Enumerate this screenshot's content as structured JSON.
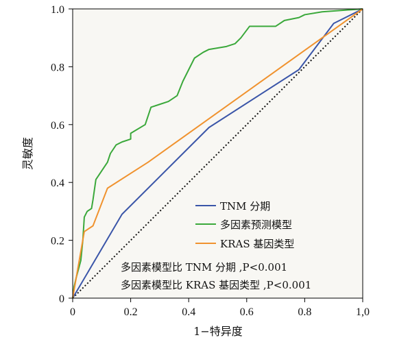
{
  "chart_data": {
    "type": "line",
    "xlabel": "1−特异度",
    "ylabel": "灵敏度",
    "xlim": [
      0,
      1
    ],
    "ylim": [
      0,
      1
    ],
    "x_ticks": [
      "0",
      "0.2",
      "0.4",
      "0.6",
      "0.8",
      "1,0"
    ],
    "y_ticks": [
      "0",
      "0.2",
      "0.4",
      "0.6",
      "0.8",
      "1.0"
    ],
    "grid": false,
    "legend_position": "bottom-right",
    "series": [
      {
        "name": "TNM 分期",
        "color": "#3a55a8",
        "points": [
          [
            0,
            0
          ],
          [
            0.17,
            0.29
          ],
          [
            0.47,
            0.59
          ],
          [
            0.78,
            0.79
          ],
          [
            0.9,
            0.95
          ],
          [
            1,
            1
          ]
        ]
      },
      {
        "name": "多因素预测模型",
        "color": "#3aa83a",
        "points": [
          [
            0,
            0
          ],
          [
            0.005,
            0.04
          ],
          [
            0.012,
            0.07
          ],
          [
            0.02,
            0.1
          ],
          [
            0.028,
            0.13
          ],
          [
            0.035,
            0.2
          ],
          [
            0.04,
            0.28
          ],
          [
            0.05,
            0.3
          ],
          [
            0.065,
            0.31
          ],
          [
            0.07,
            0.34
          ],
          [
            0.08,
            0.41
          ],
          [
            0.1,
            0.44
          ],
          [
            0.12,
            0.47
          ],
          [
            0.13,
            0.5
          ],
          [
            0.15,
            0.53
          ],
          [
            0.17,
            0.54
          ],
          [
            0.2,
            0.55
          ],
          [
            0.2,
            0.57
          ],
          [
            0.25,
            0.6
          ],
          [
            0.27,
            0.66
          ],
          [
            0.3,
            0.67
          ],
          [
            0.33,
            0.68
          ],
          [
            0.36,
            0.7
          ],
          [
            0.38,
            0.75
          ],
          [
            0.4,
            0.79
          ],
          [
            0.42,
            0.83
          ],
          [
            0.45,
            0.85
          ],
          [
            0.47,
            0.86
          ],
          [
            0.5,
            0.865
          ],
          [
            0.53,
            0.87
          ],
          [
            0.56,
            0.88
          ],
          [
            0.58,
            0.9
          ],
          [
            0.61,
            0.94
          ],
          [
            0.7,
            0.94
          ],
          [
            0.73,
            0.96
          ],
          [
            0.78,
            0.97
          ],
          [
            0.8,
            0.98
          ],
          [
            0.86,
            0.99
          ],
          [
            1,
            1
          ]
        ]
      },
      {
        "name": "KRAS 基因类型",
        "color": "#f0922e",
        "points": [
          [
            0,
            0
          ],
          [
            0.04,
            0.23
          ],
          [
            0.07,
            0.25
          ],
          [
            0.12,
            0.38
          ],
          [
            0.26,
            0.47
          ],
          [
            1,
            1
          ]
        ]
      }
    ],
    "reference_line": {
      "points": [
        [
          0,
          0
        ],
        [
          1,
          1
        ]
      ],
      "color": "#111111",
      "style": "dotted"
    },
    "annotations": [
      "多因素模型比 TNM 分期 ,P<0.001",
      "多因素模型比 KRAS 基因类型 ,P<0.001"
    ]
  }
}
